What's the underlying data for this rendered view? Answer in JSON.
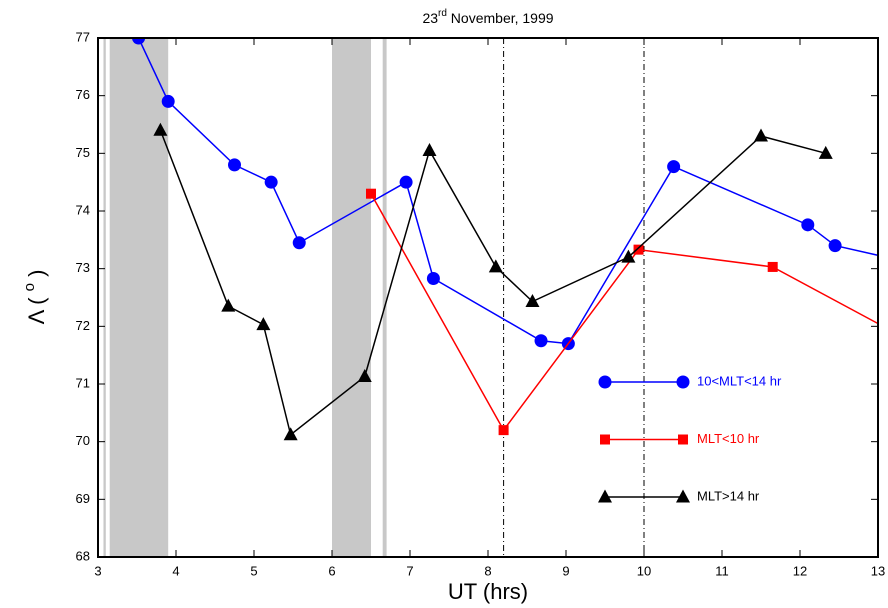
{
  "chart_data": {
    "type": "line",
    "title": {
      "main": "23",
      "sup": "rd",
      "rest": " November, 1999"
    },
    "xlabel": "UT (hrs)",
    "ylabel": {
      "main": "Λ ( ",
      "sup": "o",
      "rest": " )"
    },
    "xlim": [
      3,
      13
    ],
    "xticks": [
      3,
      4,
      5,
      6,
      7,
      8,
      9,
      10,
      11,
      12,
      13
    ],
    "ylim": [
      68,
      77
    ],
    "yticks": [
      68,
      69,
      70,
      71,
      72,
      73,
      74,
      75,
      76,
      77
    ],
    "shaded": [
      [
        3.07,
        3.1
      ],
      [
        3.15,
        3.9
      ],
      [
        6.0,
        6.5
      ],
      [
        6.65,
        6.7
      ]
    ],
    "shade_color": "#c8c8c8",
    "vlines": [
      8.2,
      10.0
    ],
    "series": [
      {
        "name": "10<MLT<14 hr",
        "color": "#0000ff",
        "marker": "circle",
        "x": [
          3.52,
          3.9,
          4.75,
          5.22,
          5.58,
          6.95,
          7.3,
          8.68,
          9.03,
          10.38,
          12.1,
          12.45,
          13.3
        ],
        "values": [
          77,
          75.9,
          74.8,
          74.5,
          73.45,
          74.5,
          72.83,
          71.75,
          71.7,
          74.77,
          73.76,
          73.4,
          73.14
        ]
      },
      {
        "name": "MLT<10 hr",
        "color": "#ff0000",
        "marker": "square",
        "x": [
          6.5,
          8.2,
          9.93,
          11.65,
          13.3
        ],
        "values": [
          74.3,
          70.2,
          73.33,
          73.03,
          71.83
        ]
      },
      {
        "name": "MLT>14 hr",
        "color": "#000000",
        "marker": "triangle",
        "x": [
          3.8,
          4.67,
          5.12,
          5.47,
          6.42,
          7.25,
          8.1,
          8.57,
          9.8,
          11.5,
          12.33
        ],
        "values": [
          75.4,
          72.35,
          72.03,
          70.12,
          71.13,
          75.05,
          73.03,
          72.43,
          73.2,
          75.3,
          75.0
        ]
      }
    ]
  }
}
